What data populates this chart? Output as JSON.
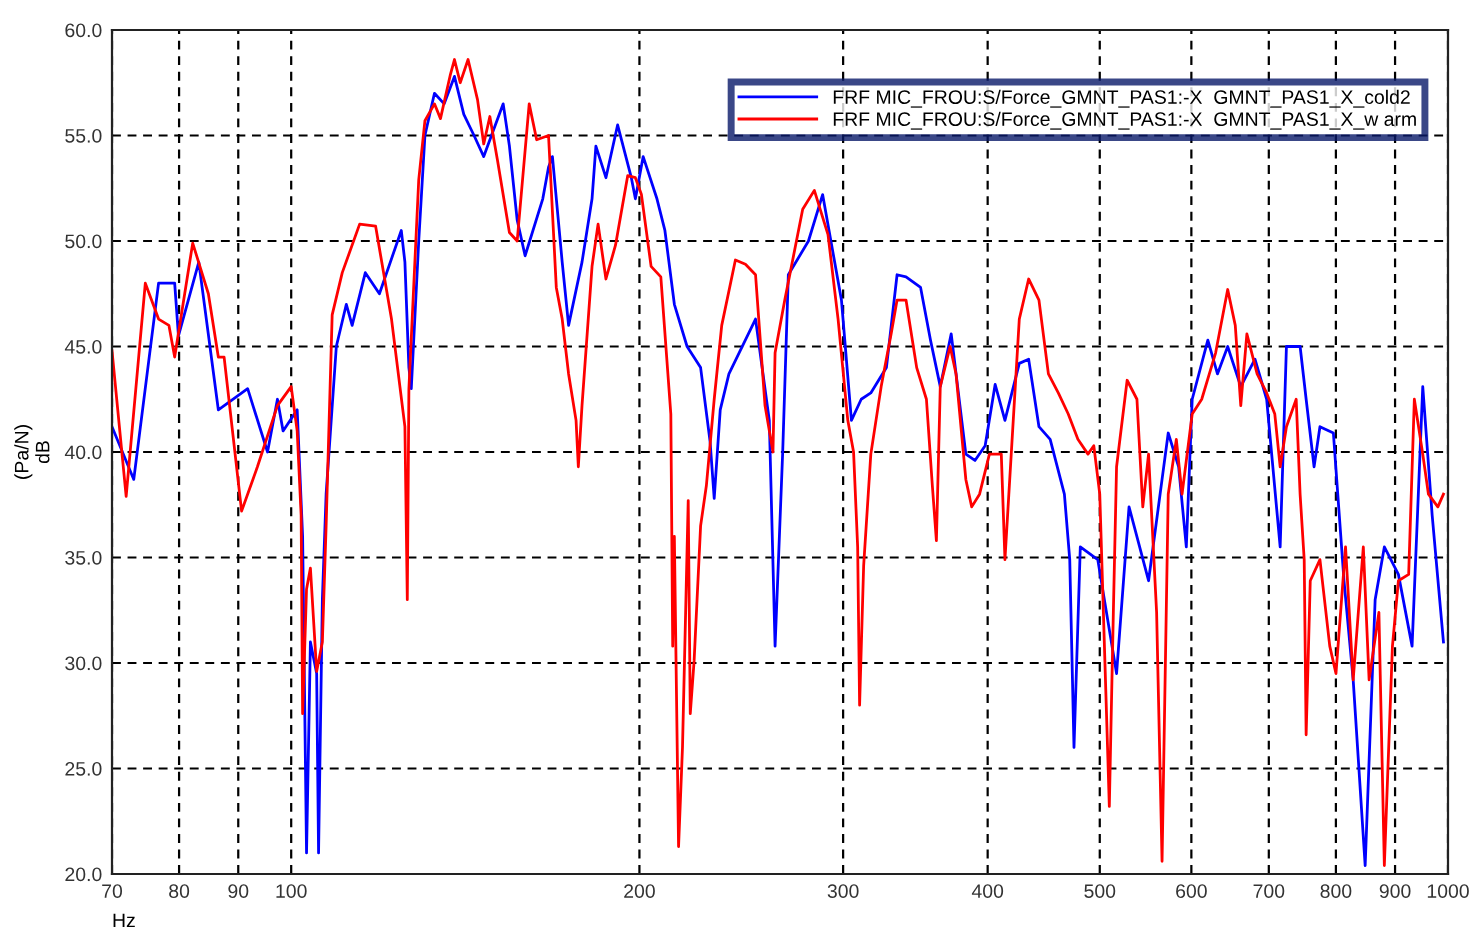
{
  "chart_data": {
    "type": "line",
    "xlabel": "Hz",
    "ylabel": "(Pa/N)\ndB",
    "log": "x",
    "grid": true,
    "legend": "top right",
    "line_style": "solid",
    "marker": "none",
    "xlim": [
      70,
      1000
    ],
    "ylim": [
      20,
      60
    ],
    "xticks": [
      70,
      80,
      90,
      100,
      200,
      300,
      400,
      500,
      600,
      700,
      800,
      900,
      1000
    ],
    "yticks": [
      {
        "value": 20,
        "label": "20.0"
      },
      {
        "value": 25,
        "label": "25.0"
      },
      {
        "value": 30,
        "label": "30.0"
      },
      {
        "value": 35,
        "label": "35.0"
      },
      {
        "value": 40,
        "label": "40.0"
      },
      {
        "value": 45,
        "label": "45.0"
      },
      {
        "value": 50,
        "label": "50.0"
      },
      {
        "value": 55,
        "label": "55.0"
      },
      {
        "value": 60,
        "label": "60.0"
      }
    ],
    "series": [
      {
        "name": "FRF MIC_FROU:S/Force_GMNT_PAS1:-X  GMNT_PAS1_X_cold2",
        "color": "#0000ff",
        "x": [
          70,
          73.1,
          76.8,
          79.3,
          79.9,
          83.2,
          86.5,
          91.7,
          95.4,
          97.3,
          98.4,
          101.2,
          102.3,
          103.1,
          103.9,
          105.2,
          105.6,
          106.4,
          107.2,
          109.4,
          111.6,
          112.9,
          115.9,
          119.2,
          124.5,
          125.4,
          126.4,
          127,
          128.9,
          130.5,
          133,
          135.6,
          138.4,
          141,
          143.9,
          146.7,
          152.5,
          154.4,
          156.8,
          159.3,
          165,
          166.9,
          168.2,
          171.5,
          173.7,
          178.4,
          182,
          183.4,
          187.1,
          191.5,
          196.8,
          198.4,
          201.5,
          207.1,
          210.4,
          214.4,
          219.9,
          225.9,
          230.2,
          232.1,
          234.9,
          239,
          252,
          259,
          262,
          266,
          269,
          280,
          288,
          299,
          305,
          311,
          317,
          327,
          334,
          340,
          350,
          357,
          364,
          372,
          383,
          390,
          398,
          406,
          414,
          426,
          434,
          443,
          453,
          466,
          471,
          475,
          481,
          498,
          517,
          530,
          551,
          566,
          573,
          585,
          594,
          601,
          620,
          632,
          645,
          662,
          681,
          697,
          716,
          725,
          745,
          754,
          766,
          775,
          796,
          813,
          828,
          848,
          865,
          881,
          906,
          931,
          951,
          969,
          991
        ],
        "values": [
          41.2,
          38.7,
          48,
          48,
          45.5,
          49,
          42,
          43,
          40,
          42.5,
          41,
          42,
          36,
          21,
          31,
          29.5,
          21,
          33,
          38,
          45,
          47,
          46,
          48.5,
          47.5,
          50.5,
          49,
          44,
          43,
          50,
          55,
          57,
          56.5,
          57.8,
          56,
          55,
          54,
          56.5,
          54.5,
          51,
          49.3,
          52,
          53.5,
          54,
          49,
          46,
          49,
          52,
          54.5,
          53,
          55.5,
          53,
          52,
          54,
          52,
          50.5,
          47,
          45,
          44,
          40.5,
          37.8,
          42,
          43.7,
          46.3,
          41.5,
          30.8,
          40,
          48.4,
          50,
          52.2,
          47.2,
          41.5,
          42.5,
          42.8,
          44,
          48.4,
          48.3,
          47.8,
          45.3,
          43.1,
          45.6,
          39.9,
          39.6,
          40.3,
          43.2,
          41.5,
          44.2,
          44.4,
          41.2,
          40.6,
          38,
          34.9,
          26,
          35.5,
          34.9,
          29.5,
          37.4,
          33.9,
          38.7,
          40.9,
          39.3,
          35.5,
          42.5,
          45.3,
          43.7,
          45,
          43.1,
          44.4,
          42.5,
          35.5,
          45,
          45,
          42.5,
          39.3,
          41.2,
          40.9,
          33.9,
          29.2,
          20.4,
          33,
          35.5,
          34.2,
          30.8,
          43.1,
          37,
          31
        ]
      },
      {
        "name": "FRF MIC_FROU:S/Force_GMNT_PAS1:-X  GMNT_PAS1_X_w arm",
        "color": "#ff0000",
        "x": [
          70,
          72,
          74.8,
          76.8,
          78.4,
          79.3,
          82.2,
          84.8,
          86.5,
          87.5,
          90.6,
          93.5,
          97.3,
          100,
          101.2,
          102,
          102.3,
          103.1,
          103.9,
          105.2,
          106.4,
          107.2,
          108.5,
          110.7,
          114.6,
          118.3,
          122.1,
          125.4,
          126,
          126.4,
          128.9,
          130.5,
          133,
          134.6,
          137.3,
          138.4,
          140,
          142.2,
          144.9,
          146.7,
          148.5,
          150.8,
          154.4,
          156.8,
          160.6,
          163,
          166.9,
          169.5,
          171.5,
          173.7,
          176.3,
          177.1,
          178.4,
          182,
          184.2,
          187.1,
          190.7,
          195.4,
          198.4,
          200.8,
          204.7,
          208.7,
          212.9,
          213.7,
          214.4,
          216.2,
          217.9,
          220.4,
          221.3,
          223,
          225.9,
          228.5,
          232.1,
          235.6,
          242.1,
          247,
          252,
          256.8,
          260.9,
          262,
          267.1,
          276.8,
          283.3,
          291.1,
          297,
          302.8,
          306.3,
          308.8,
          310,
          312.5,
          317,
          323.6,
          330.1,
          334,
          340,
          347.3,
          354.1,
          358.3,
          361.2,
          364,
          371.2,
          375.6,
          383,
          387.5,
          393.6,
          401.4,
          411,
          414,
          426,
          434,
          443,
          451.4,
          460.4,
          469.6,
          478.7,
          488.4,
          494.1,
          500,
          507.8,
          509.6,
          513.7,
          517,
          528,
          538.4,
          544.7,
          551,
          559.9,
          566,
          573,
          582.3,
          589,
          601,
          612.5,
          629.7,
          645,
          654.8,
          662,
          670.1,
          683.9,
          697,
          708.4,
          716,
          725,
          739.2,
          745,
          751.1,
          754,
          760.2,
          775,
          790.3,
          800.1,
          815.5,
          828,
          844.9,
          854.7,
          871.5,
          881,
          895.3,
          906,
          924.7,
          935.2,
          951,
          961.8,
          980,
          991
        ],
        "values": [
          44.8,
          37.9,
          48,
          46.3,
          46,
          44.5,
          49.9,
          47.5,
          44.5,
          44.5,
          37.2,
          39.3,
          42.2,
          43.1,
          41,
          37,
          27.6,
          33.5,
          34.5,
          29.6,
          31,
          36.5,
          46.5,
          48.5,
          50.8,
          50.7,
          46.3,
          41.2,
          33,
          43,
          52.9,
          55.7,
          56.5,
          55.8,
          57.9,
          58.6,
          57.5,
          58.6,
          56.7,
          54.6,
          55.9,
          53.8,
          50.4,
          50,
          56.5,
          54.8,
          55,
          47.8,
          46.3,
          43.7,
          41.5,
          39.3,
          42.2,
          48.8,
          50.8,
          48.2,
          49.8,
          53.1,
          53,
          52.2,
          48.8,
          48.3,
          41.8,
          30.8,
          36,
          21.3,
          26,
          37.7,
          27.6,
          30.1,
          36.5,
          38.4,
          42.5,
          46,
          49.1,
          48.9,
          48.4,
          42.2,
          40,
          44.7,
          47.2,
          51.5,
          52.4,
          50.3,
          46.3,
          41.5,
          40,
          35.5,
          28,
          34.6,
          39.9,
          43.1,
          45.6,
          47.2,
          47.2,
          44,
          42.5,
          38.4,
          35.8,
          43.1,
          45,
          43.7,
          38.7,
          37.4,
          38,
          39.9,
          39.9,
          34.9,
          46.3,
          48.2,
          47.2,
          43.7,
          42.8,
          41.8,
          40.6,
          39.9,
          40.3,
          38,
          26,
          23.2,
          32.4,
          39.3,
          43.4,
          42.5,
          37.4,
          39.9,
          32.4,
          20.6,
          38,
          40.6,
          38,
          41.8,
          42.5,
          44.7,
          47.7,
          46,
          42.2,
          45.6,
          43.7,
          42.8,
          41.8,
          39.3,
          41.2,
          42.5,
          38,
          34.9,
          26.6,
          33.9,
          34.9,
          30.8,
          29.5,
          35.5,
          29.2,
          35.5,
          29.2,
          32.4,
          20.4,
          30.8,
          33.9,
          34.2,
          42.5,
          39.9,
          38,
          37.4,
          38
        ]
      }
    ]
  }
}
